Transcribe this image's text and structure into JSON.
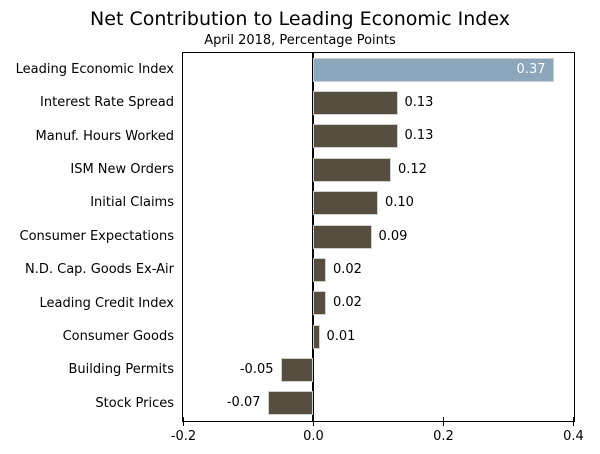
{
  "chart_data": {
    "type": "bar",
    "orientation": "horizontal",
    "title": "Net Contribution to Leading Economic Index",
    "subtitle": "April 2018, Percentage Points",
    "categories": [
      "Leading Economic Index",
      "Interest Rate Spread",
      "Manuf. Hours Worked",
      "ISM New Orders",
      "Initial Claims",
      "Consumer Expectations",
      "N.D. Cap. Goods Ex-Air",
      "Leading Credit Index",
      "Consumer Goods",
      "Building Permits",
      "Stock Prices"
    ],
    "values": [
      0.37,
      0.13,
      0.13,
      0.12,
      0.1,
      0.09,
      0.02,
      0.02,
      0.01,
      -0.05,
      -0.07
    ],
    "value_labels": [
      "0.37",
      "0.13",
      "0.13",
      "0.12",
      "0.10",
      "0.09",
      "0.02",
      "0.02",
      "0.01",
      "-0.05",
      "-0.07"
    ],
    "highlight_index": 0,
    "xlim": [
      -0.2,
      0.4
    ],
    "x_ticks": [
      -0.2,
      0.0,
      0.2,
      0.4
    ],
    "x_tick_labels": [
      "-0.2",
      "0.0",
      "0.2",
      "0.4"
    ],
    "grid": false,
    "legend": null,
    "colors": {
      "highlight_bar": "#8CA6BC",
      "bar": "#574E42",
      "bar_edge": "#CFCFCF",
      "axis": "#000000",
      "text": "#000000",
      "value_inside_text": "#FFFFFF"
    }
  }
}
